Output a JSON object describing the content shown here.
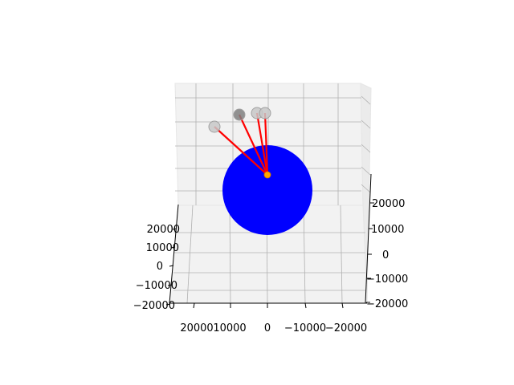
{
  "chart_data": {
    "type": "scatter",
    "projection": "3d",
    "title": "",
    "xlabel": "",
    "ylabel": "",
    "zlabel": "",
    "grid": true,
    "legend": "none",
    "xlim": [
      -20000,
      20000
    ],
    "ylim": [
      -20000,
      20000
    ],
    "zlim": [
      -20000,
      20000
    ],
    "axes": {
      "left": {
        "ticks": [
          "20000",
          "10000",
          "0",
          "−10000",
          "−20000"
        ]
      },
      "bottom": {
        "ticks": [
          "20000",
          "10000",
          "0",
          "−10000",
          "−20000"
        ]
      },
      "right": {
        "ticks": [
          "20000",
          "10000",
          "0",
          "−10000",
          "−20000"
        ]
      }
    },
    "central_body": {
      "shape": "sphere",
      "color": "#0000ff"
    },
    "origin_marker": {
      "color": "#ffa500"
    },
    "satellites": [
      {
        "color": "#c8c8c8",
        "line_color": "#ff0000"
      },
      {
        "color": "#808080",
        "line_color": "#ff0000"
      },
      {
        "color": "#c8c8c8",
        "line_color": "#ff0000"
      },
      {
        "color": "#c8c8c8",
        "line_color": "#ff0000"
      }
    ]
  }
}
